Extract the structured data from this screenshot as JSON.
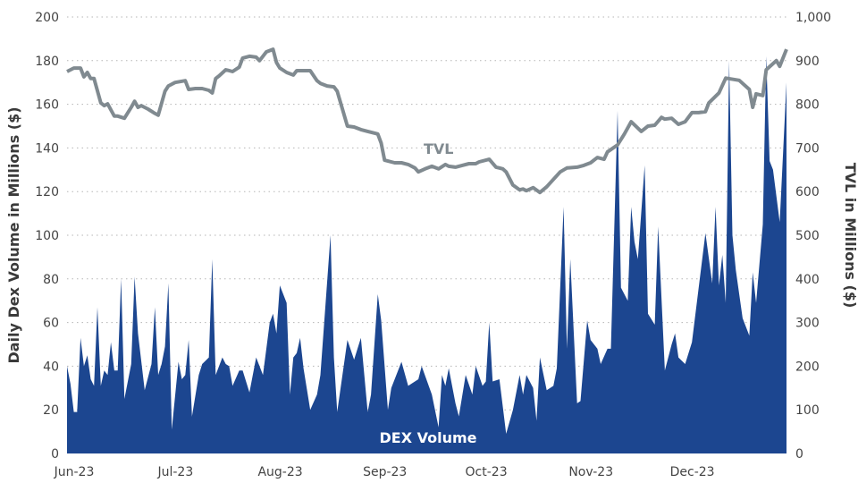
{
  "chart_data": {
    "type": "area+line",
    "title": "",
    "x_unit": "days from Jun-23 start",
    "x_ticks": [
      {
        "day": 0,
        "label": "Jun-23"
      },
      {
        "day": 30,
        "label": "Jul-23"
      },
      {
        "day": 61,
        "label": "Aug-23"
      },
      {
        "day": 92,
        "label": "Sep-23"
      },
      {
        "day": 122,
        "label": "Oct-23"
      },
      {
        "day": 153,
        "label": "Nov-23"
      },
      {
        "day": 183,
        "label": "Dec-23"
      }
    ],
    "xlim": [
      0,
      213
    ],
    "ylabel_left": "Daily Dex Volume in Millions ($)",
    "ylabel_right": "TVL in Millions ($)",
    "ylim_left": [
      0,
      200
    ],
    "ylim_right": [
      0,
      1000
    ],
    "left_ticks": [
      "0",
      "20",
      "40",
      "60",
      "80",
      "100",
      "120",
      "140",
      "160",
      "180",
      "200"
    ],
    "right_ticks": [
      "0",
      "100",
      "200",
      "300",
      "400",
      "500",
      "600",
      "700",
      "800",
      "900",
      "1,000"
    ],
    "grid": true,
    "colors": {
      "dex": "#1c4690",
      "tvl": "#808a90"
    },
    "series": [
      {
        "name": "DEX Volume",
        "axis": "left",
        "kind": "area",
        "points": [
          [
            0,
            40
          ],
          [
            1,
            32
          ],
          [
            2,
            19
          ],
          [
            3,
            19
          ],
          [
            4,
            53
          ],
          [
            5,
            40
          ],
          [
            6,
            45
          ],
          [
            7,
            34
          ],
          [
            8,
            31
          ],
          [
            9,
            67
          ],
          [
            10,
            31
          ],
          [
            11,
            38
          ],
          [
            12,
            36
          ],
          [
            13,
            51
          ],
          [
            14,
            38
          ],
          [
            15,
            38
          ],
          [
            16,
            80
          ],
          [
            17,
            25
          ],
          [
            19,
            41
          ],
          [
            20,
            81
          ],
          [
            21,
            55
          ],
          [
            23,
            29
          ],
          [
            25,
            41
          ],
          [
            26,
            67
          ],
          [
            27,
            36
          ],
          [
            28,
            41
          ],
          [
            29,
            49
          ],
          [
            30,
            78
          ],
          [
            31,
            11
          ],
          [
            33,
            42
          ],
          [
            34,
            34
          ],
          [
            35,
            36
          ],
          [
            36,
            52
          ],
          [
            37,
            17
          ],
          [
            39,
            36
          ],
          [
            40,
            41
          ],
          [
            42,
            44
          ],
          [
            43,
            89
          ],
          [
            44,
            36
          ],
          [
            46,
            44
          ],
          [
            47,
            41
          ],
          [
            48,
            40
          ],
          [
            49,
            31
          ],
          [
            51,
            38
          ],
          [
            52,
            38
          ],
          [
            54,
            28
          ],
          [
            56,
            44
          ],
          [
            57,
            40
          ],
          [
            58,
            36
          ],
          [
            60,
            60
          ],
          [
            61,
            64
          ],
          [
            62,
            55
          ],
          [
            63,
            77
          ],
          [
            65,
            69
          ],
          [
            66,
            27
          ],
          [
            67,
            44
          ],
          [
            68,
            46
          ],
          [
            69,
            53
          ],
          [
            70,
            39
          ],
          [
            72,
            20
          ],
          [
            74,
            27
          ],
          [
            75,
            36
          ],
          [
            78,
            100
          ],
          [
            79,
            44
          ],
          [
            80,
            19
          ],
          [
            83,
            52
          ],
          [
            85,
            43
          ],
          [
            87,
            53
          ],
          [
            89,
            19
          ],
          [
            90,
            27
          ],
          [
            92,
            73
          ],
          [
            93,
            61
          ],
          [
            95,
            20
          ],
          [
            96,
            30
          ],
          [
            99,
            42
          ],
          [
            101,
            31
          ],
          [
            104,
            34
          ],
          [
            105,
            40
          ],
          [
            108,
            27
          ],
          [
            110,
            12
          ],
          [
            111,
            36
          ],
          [
            112,
            31
          ],
          [
            113,
            39
          ],
          [
            115,
            23
          ],
          [
            116,
            17
          ],
          [
            118,
            36
          ],
          [
            120,
            27
          ],
          [
            121,
            40
          ],
          [
            123,
            31
          ],
          [
            124,
            33
          ],
          [
            125,
            60
          ],
          [
            126,
            33
          ],
          [
            128,
            34
          ],
          [
            130,
            9
          ],
          [
            132,
            20
          ],
          [
            134,
            36
          ],
          [
            135,
            27
          ],
          [
            136,
            36
          ],
          [
            138,
            30
          ],
          [
            139,
            15
          ],
          [
            140,
            44
          ],
          [
            142,
            29
          ],
          [
            144,
            31
          ],
          [
            145,
            39
          ],
          [
            147,
            113
          ],
          [
            148,
            48
          ],
          [
            149,
            89
          ],
          [
            151,
            23
          ],
          [
            152,
            24
          ],
          [
            154,
            61
          ],
          [
            155,
            52
          ],
          [
            157,
            48
          ],
          [
            158,
            41
          ],
          [
            160,
            48
          ],
          [
            161,
            48
          ],
          [
            163,
            157
          ],
          [
            164,
            76
          ],
          [
            166,
            70
          ],
          [
            167,
            113
          ],
          [
            168,
            97
          ],
          [
            169,
            89
          ],
          [
            171,
            132
          ],
          [
            172,
            64
          ],
          [
            174,
            59
          ],
          [
            175,
            104
          ],
          [
            177,
            38
          ],
          [
            179,
            50
          ],
          [
            180,
            55
          ],
          [
            181,
            44
          ],
          [
            183,
            41
          ],
          [
            185,
            51
          ],
          [
            189,
            101
          ],
          [
            191,
            78
          ],
          [
            192,
            113
          ],
          [
            193,
            77
          ],
          [
            194,
            91
          ],
          [
            195,
            69
          ],
          [
            196,
            180
          ],
          [
            197,
            100
          ],
          [
            198,
            84
          ],
          [
            200,
            62
          ],
          [
            202,
            54
          ],
          [
            203,
            83
          ],
          [
            204,
            69
          ],
          [
            206,
            105
          ],
          [
            207,
            182
          ],
          [
            208,
            134
          ],
          [
            209,
            130
          ],
          [
            211,
            106
          ],
          [
            213,
            170
          ]
        ]
      },
      {
        "name": "TVL",
        "axis": "right",
        "kind": "line",
        "points": [
          [
            0,
            875
          ],
          [
            2,
            883
          ],
          [
            4,
            883
          ],
          [
            5,
            863
          ],
          [
            6,
            873
          ],
          [
            7,
            859
          ],
          [
            8,
            859
          ],
          [
            10,
            803
          ],
          [
            11,
            797
          ],
          [
            12,
            801
          ],
          [
            14,
            773
          ],
          [
            15,
            773
          ],
          [
            17,
            768
          ],
          [
            19,
            793
          ],
          [
            20,
            807
          ],
          [
            21,
            793
          ],
          [
            22,
            797
          ],
          [
            24,
            789
          ],
          [
            26,
            779
          ],
          [
            27,
            775
          ],
          [
            29,
            830
          ],
          [
            30,
            842
          ],
          [
            32,
            850
          ],
          [
            35,
            854
          ],
          [
            36,
            834
          ],
          [
            38,
            836
          ],
          [
            40,
            836
          ],
          [
            42,
            832
          ],
          [
            43,
            826
          ],
          [
            44,
            859
          ],
          [
            45,
            865
          ],
          [
            47,
            879
          ],
          [
            49,
            875
          ],
          [
            51,
            885
          ],
          [
            52,
            906
          ],
          [
            54,
            910
          ],
          [
            56,
            908
          ],
          [
            57,
            900
          ],
          [
            59,
            920
          ],
          [
            61,
            926
          ],
          [
            62,
            896
          ],
          [
            63,
            883
          ],
          [
            65,
            873
          ],
          [
            67,
            867
          ],
          [
            68,
            877
          ],
          [
            72,
            877
          ],
          [
            74,
            854
          ],
          [
            75,
            848
          ],
          [
            77,
            842
          ],
          [
            79,
            840
          ],
          [
            80,
            830
          ],
          [
            83,
            750
          ],
          [
            85,
            748
          ],
          [
            87,
            742
          ],
          [
            89,
            738
          ],
          [
            91,
            734
          ],
          [
            92,
            732
          ],
          [
            93,
            711
          ],
          [
            94,
            672
          ],
          [
            97,
            666
          ],
          [
            99,
            666
          ],
          [
            101,
            662
          ],
          [
            103,
            654
          ],
          [
            104,
            645
          ],
          [
            106,
            652
          ],
          [
            108,
            658
          ],
          [
            110,
            652
          ],
          [
            112,
            662
          ],
          [
            113,
            658
          ],
          [
            115,
            656
          ],
          [
            117,
            660
          ],
          [
            119,
            664
          ],
          [
            121,
            664
          ],
          [
            122,
            668
          ],
          [
            125,
            674
          ],
          [
            127,
            656
          ],
          [
            128,
            654
          ],
          [
            129,
            652
          ],
          [
            130,
            645
          ],
          [
            132,
            615
          ],
          [
            134,
            604
          ],
          [
            135,
            606
          ],
          [
            136,
            602
          ],
          [
            138,
            609
          ],
          [
            140,
            598
          ],
          [
            142,
            611
          ],
          [
            146,
            645
          ],
          [
            148,
            654
          ],
          [
            151,
            656
          ],
          [
            153,
            660
          ],
          [
            155,
            666
          ],
          [
            157,
            678
          ],
          [
            159,
            674
          ],
          [
            160,
            691
          ],
          [
            163,
            707
          ],
          [
            165,
            732
          ],
          [
            167,
            760
          ],
          [
            170,
            738
          ],
          [
            172,
            750
          ],
          [
            174,
            752
          ],
          [
            176,
            770
          ],
          [
            177,
            766
          ],
          [
            179,
            768
          ],
          [
            181,
            754
          ],
          [
            183,
            760
          ],
          [
            185,
            781
          ],
          [
            187,
            781
          ],
          [
            189,
            783
          ],
          [
            190,
            803
          ],
          [
            193,
            826
          ],
          [
            195,
            860
          ],
          [
            199,
            855
          ],
          [
            202,
            834
          ],
          [
            203,
            793
          ],
          [
            204,
            824
          ],
          [
            206,
            820
          ],
          [
            207,
            879
          ],
          [
            210,
            900
          ],
          [
            211,
            887
          ],
          [
            213,
            926
          ]
        ]
      }
    ],
    "annotations": {
      "dex_label": "DEX Volume",
      "tvl_label": "TVL"
    }
  }
}
